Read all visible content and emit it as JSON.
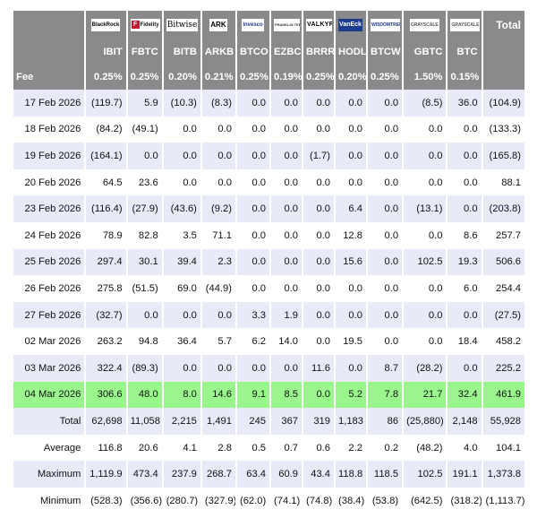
{
  "header": {
    "total_label": "Total",
    "fee_label": "Fee",
    "logos": [
      {
        "text": "BlackRock",
        "icon": "blackrock-logo-icon"
      },
      {
        "text": "Fidelity",
        "icon": "fidelity-logo-icon"
      },
      {
        "text": "Bitwise",
        "icon": "bitwise-logo-icon"
      },
      {
        "text": "ARK",
        "icon": "ark-logo-icon"
      },
      {
        "text": "Invesco",
        "icon": "invesco-logo-icon"
      },
      {
        "text": "FRANKLIN TEMPLETON",
        "icon": "franklin-logo-icon"
      },
      {
        "text": "VALKYRIE",
        "icon": "valkyrie-logo-icon"
      },
      {
        "text": "VanEck",
        "icon": "vaneck-logo-icon"
      },
      {
        "text": "WISDOMTREE",
        "icon": "wisdomtree-logo-icon"
      },
      {
        "text": "GRAYSCALE",
        "icon": "grayscale-logo-icon"
      },
      {
        "text": "GRAYSCALE",
        "icon": "grayscale-logo-icon"
      }
    ],
    "tickers": [
      "IBIT",
      "FBTC",
      "BITB",
      "ARKB",
      "BTCO",
      "EZBC",
      "BRRR",
      "HODL",
      "BTCW",
      "GBTC",
      "BTC"
    ],
    "fees": [
      "0.25%",
      "0.25%",
      "0.20%",
      "0.21%",
      "0.25%",
      "0.19%",
      "0.25%",
      "0.20%",
      "0.25%",
      "1.50%",
      "0.15%"
    ]
  },
  "rows": [
    {
      "date": "17 Feb 2026",
      "values": [
        "(119.7)",
        "5.9",
        "(10.3)",
        "(8.3)",
        "0.0",
        "0.0",
        "0.0",
        "0.0",
        "0.0",
        "(8.5)",
        "36.0"
      ],
      "total": "(104.9)"
    },
    {
      "date": "18 Feb 2026",
      "values": [
        "(84.2)",
        "(49.1)",
        "0.0",
        "0.0",
        "0.0",
        "0.0",
        "0.0",
        "0.0",
        "0.0",
        "0.0",
        "0.0"
      ],
      "total": "(133.3)"
    },
    {
      "date": "19 Feb 2026",
      "values": [
        "(164.1)",
        "0.0",
        "0.0",
        "0.0",
        "0.0",
        "0.0",
        "(1.7)",
        "0.0",
        "0.0",
        "0.0",
        "0.0"
      ],
      "total": "(165.8)"
    },
    {
      "date": "20 Feb 2026",
      "values": [
        "64.5",
        "23.6",
        "0.0",
        "0.0",
        "0.0",
        "0.0",
        "0.0",
        "0.0",
        "0.0",
        "0.0",
        "0.0"
      ],
      "total": "88.1"
    },
    {
      "date": "23 Feb 2026",
      "values": [
        "(116.4)",
        "(27.9)",
        "(43.6)",
        "(9.2)",
        "0.0",
        "0.0",
        "0.0",
        "6.4",
        "0.0",
        "(13.1)",
        "0.0"
      ],
      "total": "(203.8)"
    },
    {
      "date": "24 Feb 2026",
      "values": [
        "78.9",
        "82.8",
        "3.5",
        "71.1",
        "0.0",
        "0.0",
        "0.0",
        "12.8",
        "0.0",
        "0.0",
        "8.6"
      ],
      "total": "257.7"
    },
    {
      "date": "25 Feb 2026",
      "values": [
        "297.4",
        "30.1",
        "39.4",
        "2.3",
        "0.0",
        "0.0",
        "0.0",
        "15.6",
        "0.0",
        "102.5",
        "19.3"
      ],
      "total": "506.6"
    },
    {
      "date": "26 Feb 2026",
      "values": [
        "275.8",
        "(51.5)",
        "69.0",
        "(44.9)",
        "0.0",
        "0.0",
        "0.0",
        "0.0",
        "0.0",
        "0.0",
        "6.0"
      ],
      "total": "254.4"
    },
    {
      "date": "27 Feb 2026",
      "values": [
        "(32.7)",
        "0.0",
        "0.0",
        "0.0",
        "3.3",
        "1.9",
        "0.0",
        "0.0",
        "0.0",
        "0.0",
        "0.0"
      ],
      "total": "(27.5)"
    },
    {
      "date": "02 Mar 2026",
      "values": [
        "263.2",
        "94.8",
        "36.4",
        "5.7",
        "6.2",
        "14.0",
        "0.0",
        "19.5",
        "0.0",
        "0.0",
        "18.4"
      ],
      "total": "458.2"
    },
    {
      "date": "03 Mar 2026",
      "values": [
        "322.4",
        "(89.3)",
        "0.0",
        "0.0",
        "0.0",
        "0.0",
        "11.6",
        "0.0",
        "8.7",
        "(28.2)",
        "0.0"
      ],
      "total": "225.2"
    },
    {
      "date": "04 Mar 2026",
      "values": [
        "306.6",
        "48.0",
        "8.0",
        "14.6",
        "9.1",
        "8.5",
        "0.0",
        "5.2",
        "7.8",
        "21.7",
        "32.4"
      ],
      "total": "461.9",
      "highlight": true
    }
  ],
  "summary": [
    {
      "label": "Total",
      "values": [
        "62,698",
        "11,058",
        "2,215",
        "1,491",
        "245",
        "367",
        "319",
        "1,183",
        "86",
        "(25,880)",
        "2,148"
      ],
      "total": "55,928"
    },
    {
      "label": "Average",
      "values": [
        "116.8",
        "20.6",
        "4.1",
        "2.8",
        "0.5",
        "0.7",
        "0.6",
        "2.2",
        "0.2",
        "(48.2)",
        "4.0"
      ],
      "total": "104.1"
    },
    {
      "label": "Maximum",
      "values": [
        "1,119.9",
        "473.4",
        "237.9",
        "268.7",
        "63.4",
        "60.9",
        "43.4",
        "118.8",
        "118.5",
        "102.5",
        "191.1"
      ],
      "total": "1,373.8"
    },
    {
      "label": "Minimum",
      "values": [
        "(528.3)",
        "(356.6)",
        "(280.7)",
        "(327.9)",
        "(62.0)",
        "(74.1)",
        "(74.8)",
        "(38.4)",
        "(53.8)",
        "(642.5)",
        "(318.2)"
      ],
      "total": "(1,113.7)"
    }
  ]
}
